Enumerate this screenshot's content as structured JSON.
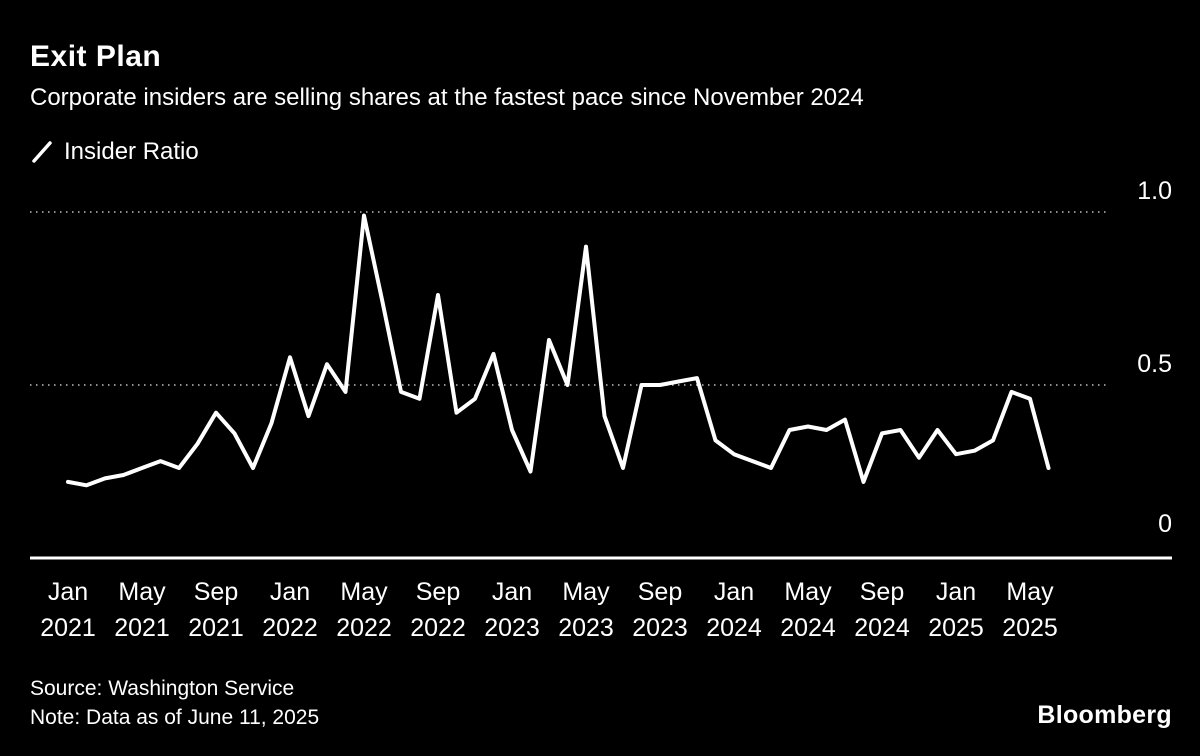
{
  "header": {
    "title": "Exit Plan",
    "subtitle": "Corporate insiders are selling shares at the fastest pace since November 2024"
  },
  "legend": {
    "label": "Insider Ratio"
  },
  "footer": {
    "source": "Source: Washington Service",
    "note": "Note: Data as of June 11, 2025",
    "brand": "Bloomberg"
  },
  "chart_data": {
    "type": "line",
    "title": "Exit Plan",
    "subtitle": "Corporate insiders are selling shares at the fastest pace since November 2024",
    "series_name": "Insider Ratio",
    "x_start": "Jan 2021",
    "x_end": "Jun 2025",
    "x_frequency": "monthly",
    "values": [
      0.22,
      0.21,
      0.23,
      0.24,
      0.26,
      0.28,
      0.26,
      0.33,
      0.42,
      0.36,
      0.26,
      0.39,
      0.58,
      0.41,
      0.56,
      0.48,
      0.99,
      0.74,
      0.48,
      0.46,
      0.76,
      0.42,
      0.46,
      0.59,
      0.37,
      0.25,
      0.63,
      0.5,
      0.9,
      0.41,
      0.26,
      0.5,
      0.5,
      0.51,
      0.52,
      0.34,
      0.3,
      0.28,
      0.26,
      0.37,
      0.38,
      0.37,
      0.4,
      0.22,
      0.36,
      0.37,
      0.29,
      0.37,
      0.3,
      0.31,
      0.34,
      0.48,
      0.46,
      0.26
    ],
    "x_ticks": [
      {
        "month_index": 0,
        "line1": "Jan",
        "line2": "2021"
      },
      {
        "month_index": 4,
        "line1": "May",
        "line2": "2021"
      },
      {
        "month_index": 8,
        "line1": "Sep",
        "line2": "2021"
      },
      {
        "month_index": 12,
        "line1": "Jan",
        "line2": "2022"
      },
      {
        "month_index": 16,
        "line1": "May",
        "line2": "2022"
      },
      {
        "month_index": 20,
        "line1": "Sep",
        "line2": "2022"
      },
      {
        "month_index": 24,
        "line1": "Jan",
        "line2": "2023"
      },
      {
        "month_index": 28,
        "line1": "May",
        "line2": "2023"
      },
      {
        "month_index": 32,
        "line1": "Sep",
        "line2": "2023"
      },
      {
        "month_index": 36,
        "line1": "Jan",
        "line2": "2024"
      },
      {
        "month_index": 40,
        "line1": "May",
        "line2": "2024"
      },
      {
        "month_index": 44,
        "line1": "Sep",
        "line2": "2024"
      },
      {
        "month_index": 48,
        "line1": "Jan",
        "line2": "2025"
      },
      {
        "month_index": 52,
        "line1": "May",
        "line2": "2025"
      }
    ],
    "y_ticks": [
      {
        "value": 1.0,
        "label": "1.0"
      },
      {
        "value": 0.5,
        "label": "0.5"
      },
      {
        "value": 0.0,
        "label": "0"
      }
    ],
    "gridlines": [
      1.0,
      0.5
    ],
    "ylim": [
      0,
      1.05
    ],
    "legend_position": "top-left",
    "grid": "dotted-horizontal",
    "line_color": "#ffffff",
    "background_color": "#000000",
    "gridline_color": "#bdbdbd",
    "axis_color": "#ffffff"
  }
}
